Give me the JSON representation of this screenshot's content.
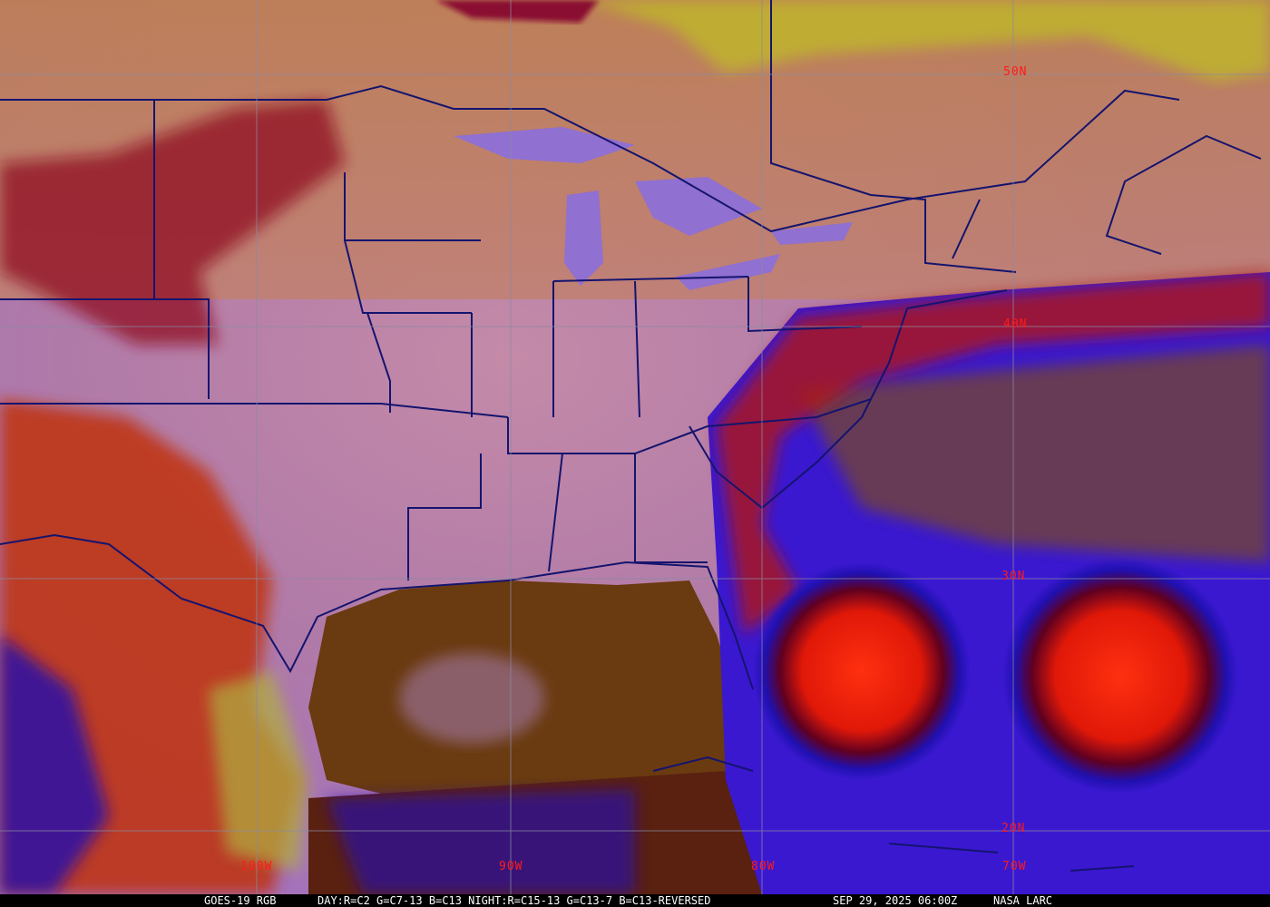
{
  "caption": {
    "satellite": "GOES-19 RGB",
    "recipe": "DAY:R=C2 G=C7-13 B=C13 NIGHT:R=C15-13 G=C13-7 B=C13-REVERSED",
    "timestamp": "SEP 29, 2025 06:00Z",
    "credit": "NASA LARC"
  },
  "grid_labels": {
    "lat": [
      "50N",
      "40N",
      "30N",
      "20N"
    ],
    "lon": [
      "100W",
      "90W",
      "80W",
      "70W"
    ]
  },
  "colors": {
    "label": "#ff1a1a",
    "boundaries": "#14146e",
    "gridlines": "#8a8aa0",
    "clear_land": "#c07a8a",
    "gulf_water": "#6a3a10",
    "cold_cloud": "#e02010",
    "ocean_low_cloud": "#3020e0"
  }
}
